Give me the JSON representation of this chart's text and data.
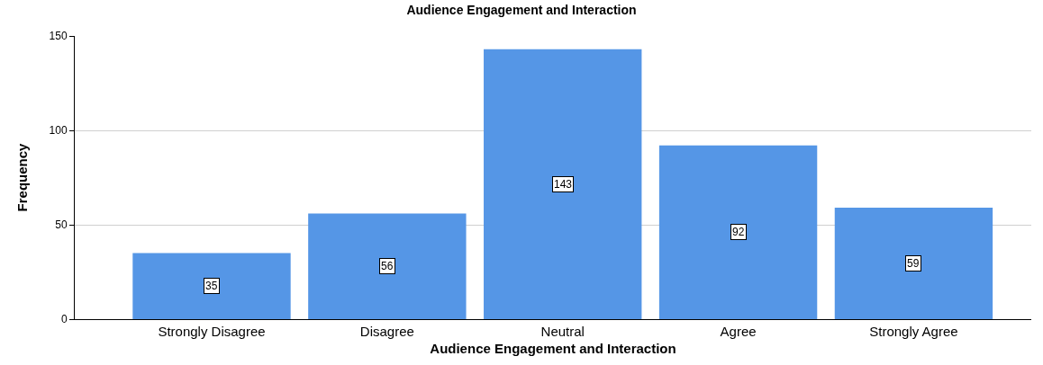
{
  "chart_data": {
    "type": "bar",
    "title": "Audience Engagement and Interaction",
    "xlabel": "Audience Engagement and Interaction",
    "ylabel": "Frequency",
    "categories": [
      "Strongly Disagree",
      "Disagree",
      "Neutral",
      "Agree",
      "Strongly Agree"
    ],
    "values": [
      35,
      56,
      143,
      92,
      59
    ],
    "color": "#5596e6",
    "ylim": [
      0,
      150
    ],
    "yticks": [
      0,
      50,
      100,
      150
    ],
    "grid": "y",
    "data_labels": true
  }
}
